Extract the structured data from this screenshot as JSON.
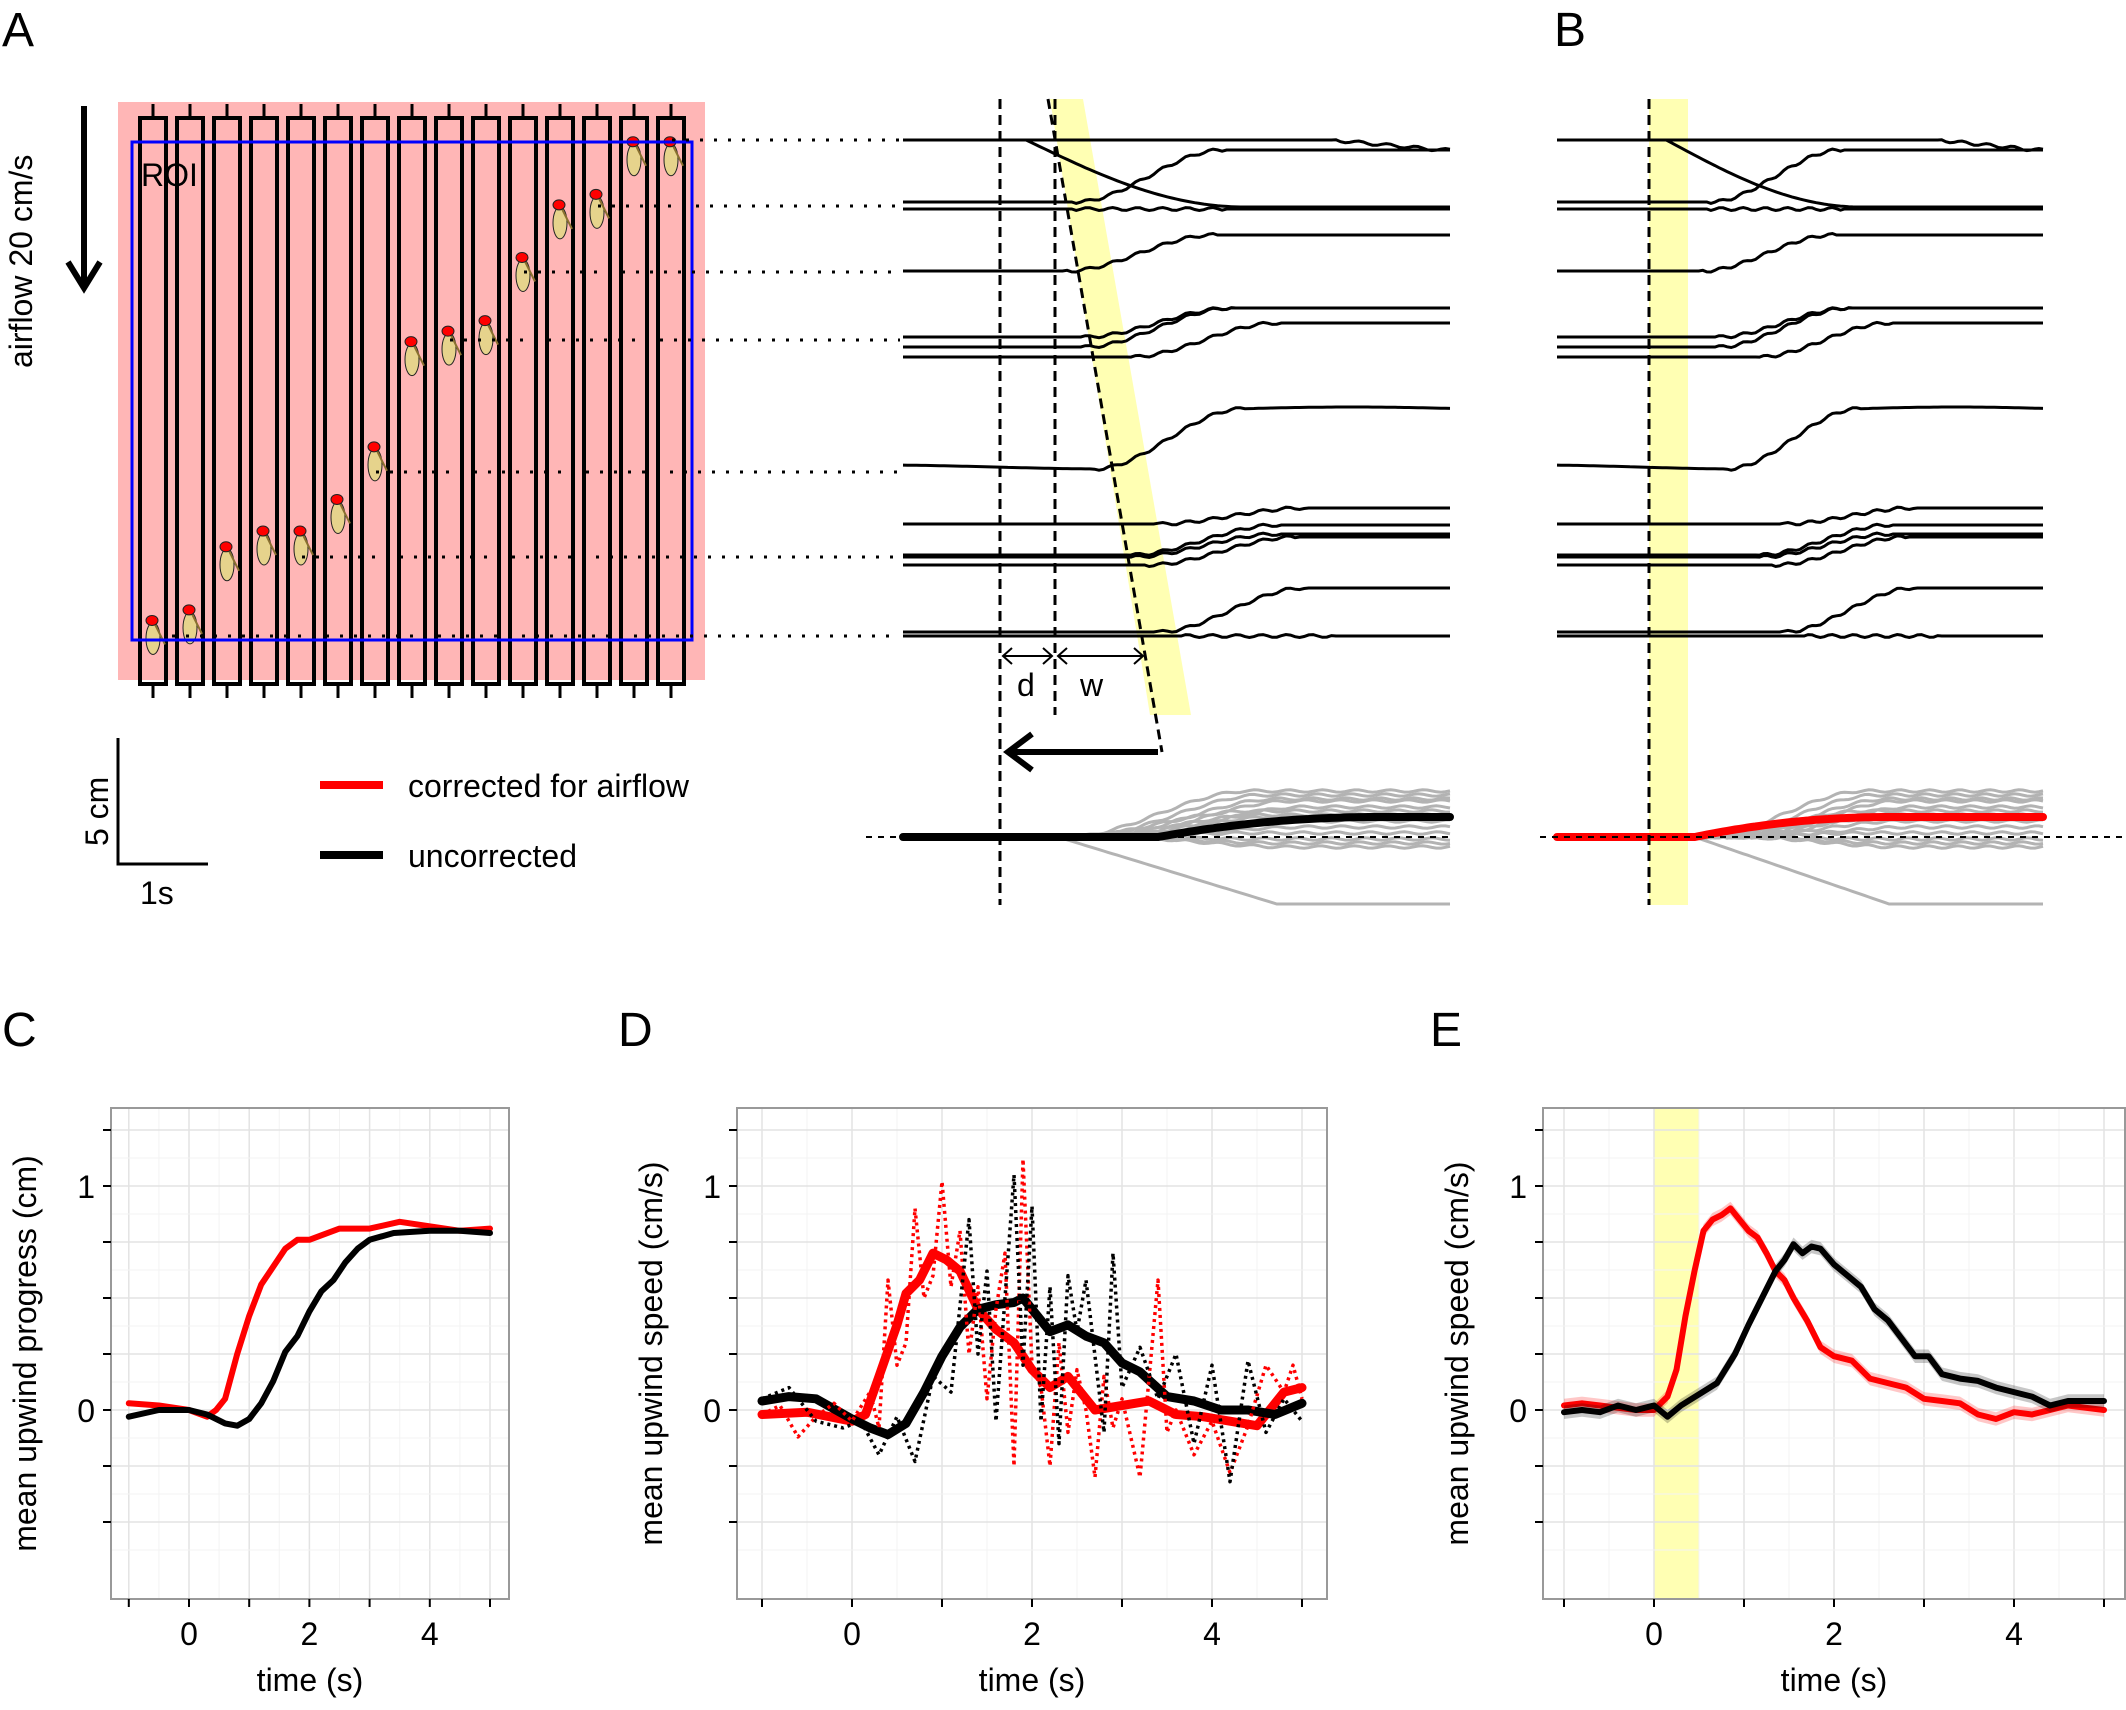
{
  "panel_labels": {
    "A": "A",
    "B": "B",
    "C": "C",
    "D": "D",
    "E": "E"
  },
  "colors": {
    "corrected": "#ff0000",
    "uncorrected": "#000000",
    "individual": "#b3b3b3",
    "highlight": "#ffffb3",
    "arena_bg": "#ffb6b6",
    "roi": "#0000ff",
    "grid": "#e5e5e5"
  },
  "panel_a": {
    "airflow_label": "airflow 20 cm/s",
    "roi_label": "ROI",
    "tube_count": 15,
    "fly_positions_fraction_from_top": [
      0.94,
      0.92,
      0.8,
      0.77,
      0.77,
      0.71,
      0.61,
      0.41,
      0.39,
      0.37,
      0.25,
      0.15,
      0.13,
      0.03,
      0.03
    ],
    "interval_labels": {
      "delay": "d",
      "width": "w"
    },
    "scalebar": {
      "vertical_label": "5 cm",
      "horizontal_label": "1s"
    }
  },
  "legend": {
    "items": [
      {
        "label": "corrected for airflow",
        "color": "#ff0000"
      },
      {
        "label": "uncorrected",
        "color": "#000000"
      }
    ]
  },
  "chart_data": [
    {
      "panel": "C",
      "type": "line",
      "title": "",
      "xlabel": "time (s)",
      "ylabel": "mean upwind progress (cm)",
      "xlim": [
        -1.2,
        5.3
      ],
      "ylim": [
        -0.5,
        1.3
      ],
      "xticks": [
        -1,
        0,
        1,
        2,
        3,
        4,
        5
      ],
      "xtick_labels": [
        "",
        "0",
        "",
        "2",
        "",
        "4",
        ""
      ],
      "yticks": [
        -0.5,
        -0.25,
        0,
        0.25,
        0.5,
        0.75,
        1,
        1.25
      ],
      "ytick_labels": [
        "",
        "",
        "0",
        "",
        "",
        "",
        "1",
        ""
      ],
      "grid": true,
      "series": [
        {
          "name": "corrected for airflow",
          "color": "#ff0000",
          "x": [
            -1,
            -0.5,
            0,
            0.3,
            0.45,
            0.6,
            0.8,
            1.0,
            1.2,
            1.4,
            1.6,
            1.8,
            2.0,
            2.2,
            2.5,
            3.0,
            3.5,
            4.0,
            4.5,
            5.0
          ],
          "y": [
            0.03,
            0.02,
            0.0,
            -0.03,
            0.0,
            0.05,
            0.25,
            0.42,
            0.56,
            0.64,
            0.72,
            0.76,
            0.76,
            0.78,
            0.81,
            0.81,
            0.84,
            0.82,
            0.8,
            0.81
          ]
        },
        {
          "name": "uncorrected",
          "color": "#000000",
          "x": [
            -1,
            -0.5,
            0,
            0.3,
            0.6,
            0.8,
            1.0,
            1.2,
            1.4,
            1.6,
            1.8,
            2.0,
            2.2,
            2.4,
            2.6,
            2.8,
            3.0,
            3.4,
            4.0,
            4.5,
            5.0
          ],
          "y": [
            -0.03,
            0.0,
            0.0,
            -0.02,
            -0.06,
            -0.07,
            -0.04,
            0.03,
            0.13,
            0.26,
            0.33,
            0.44,
            0.53,
            0.58,
            0.66,
            0.72,
            0.76,
            0.79,
            0.8,
            0.8,
            0.79
          ]
        }
      ]
    },
    {
      "panel": "D",
      "type": "line",
      "title": "",
      "xlabel": "time (s)",
      "ylabel": "mean upwind speed (cm/s)",
      "xlim": [
        -1.2,
        5.3
      ],
      "ylim": [
        -0.5,
        1.3
      ],
      "xticks": [
        -1,
        0,
        1,
        2,
        3,
        4,
        5
      ],
      "xtick_labels": [
        "",
        "0",
        "",
        "2",
        "",
        "4",
        ""
      ],
      "yticks": [
        -0.5,
        -0.25,
        0,
        0.25,
        0.5,
        0.75,
        1,
        1.25
      ],
      "ytick_labels": [
        "",
        "",
        "0",
        "",
        "",
        "",
        "1",
        ""
      ],
      "grid": true,
      "series": [
        {
          "name": "corrected for airflow (smoothed)",
          "color": "#ff0000",
          "style": "solid",
          "x": [
            -1,
            -0.5,
            0,
            0.15,
            0.3,
            0.5,
            0.6,
            0.75,
            0.9,
            1.05,
            1.2,
            1.4,
            1.6,
            1.8,
            2.0,
            2.2,
            2.4,
            2.7,
            3.0,
            3.3,
            3.6,
            3.9,
            4.2,
            4.5,
            4.8,
            5.0
          ],
          "y": [
            -0.02,
            -0.01,
            -0.05,
            -0.02,
            0.15,
            0.38,
            0.52,
            0.58,
            0.7,
            0.67,
            0.62,
            0.45,
            0.36,
            0.3,
            0.18,
            0.1,
            0.15,
            0.0,
            0.02,
            0.04,
            -0.02,
            -0.03,
            -0.05,
            -0.07,
            0.08,
            0.1
          ]
        },
        {
          "name": "uncorrected (smoothed)",
          "color": "#000000",
          "style": "solid",
          "x": [
            -1,
            -0.7,
            -0.4,
            0,
            0.2,
            0.4,
            0.6,
            0.8,
            1.0,
            1.2,
            1.4,
            1.6,
            1.8,
            1.9,
            2.0,
            2.2,
            2.4,
            2.6,
            2.8,
            3.0,
            3.2,
            3.5,
            3.8,
            4.1,
            4.4,
            4.7,
            5.0
          ],
          "y": [
            0.04,
            0.06,
            0.05,
            -0.04,
            -0.08,
            -0.11,
            -0.06,
            0.08,
            0.24,
            0.37,
            0.45,
            0.47,
            0.48,
            0.5,
            0.45,
            0.35,
            0.38,
            0.33,
            0.3,
            0.21,
            0.17,
            0.06,
            0.04,
            0.0,
            0.0,
            -0.02,
            0.03
          ]
        },
        {
          "name": "corrected for airflow (raw)",
          "color": "#ff0000",
          "style": "dotted",
          "x": [
            -1,
            -0.8,
            -0.6,
            -0.4,
            -0.2,
            0,
            0.2,
            0.3,
            0.4,
            0.5,
            0.6,
            0.7,
            0.8,
            0.9,
            1.0,
            1.1,
            1.2,
            1.3,
            1.4,
            1.5,
            1.6,
            1.7,
            1.8,
            1.9,
            2.0,
            2.1,
            2.2,
            2.3,
            2.4,
            2.5,
            2.6,
            2.7,
            2.8,
            2.9,
            3.0,
            3.2,
            3.4,
            3.5,
            3.6,
            3.8,
            4.0,
            4.2,
            4.4,
            4.6,
            4.8,
            4.9,
            5.0
          ],
          "y": [
            -0.02,
            0.02,
            -0.12,
            -0.03,
            0.03,
            -0.05,
            0.08,
            -0.08,
            0.58,
            0.2,
            0.3,
            0.9,
            0.5,
            0.6,
            1.02,
            0.55,
            0.8,
            0.25,
            0.55,
            0.05,
            0.45,
            0.7,
            -0.25,
            1.12,
            0.2,
            0.1,
            -0.25,
            0.3,
            -0.1,
            0.18,
            0.0,
            -0.3,
            0.15,
            -0.08,
            0.05,
            -0.3,
            0.58,
            -0.1,
            0.0,
            -0.2,
            -0.05,
            -0.28,
            -0.07,
            0.2,
            0.08,
            0.2,
            0.05
          ]
        },
        {
          "name": "uncorrected (raw)",
          "color": "#000000",
          "style": "dotted",
          "x": [
            -1,
            -0.7,
            -0.4,
            -0.1,
            0.1,
            0.3,
            0.5,
            0.7,
            0.9,
            1.1,
            1.3,
            1.4,
            1.5,
            1.6,
            1.8,
            1.9,
            2.0,
            2.1,
            2.2,
            2.3,
            2.4,
            2.5,
            2.6,
            2.8,
            2.9,
            3.0,
            3.2,
            3.4,
            3.6,
            3.8,
            4.0,
            4.2,
            4.4,
            4.6,
            4.8,
            5.0
          ],
          "y": [
            0.05,
            0.1,
            -0.05,
            -0.08,
            -0.05,
            -0.2,
            -0.03,
            -0.23,
            0.15,
            0.08,
            0.85,
            0.25,
            0.62,
            -0.05,
            1.05,
            0.2,
            0.91,
            -0.05,
            0.55,
            -0.15,
            0.6,
            0.35,
            0.58,
            -0.1,
            0.7,
            0.1,
            0.28,
            0.05,
            0.25,
            -0.15,
            0.2,
            -0.32,
            0.22,
            -0.1,
            0.05,
            -0.05
          ]
        }
      ]
    },
    {
      "panel": "E",
      "type": "line",
      "title": "",
      "xlabel": "time (s)",
      "ylabel": "mean upwind speed (cm/s)",
      "xlim": [
        -1.2,
        5.3
      ],
      "ylim": [
        -0.5,
        1.3
      ],
      "xticks": [
        -1,
        0,
        1,
        2,
        3,
        4,
        5
      ],
      "xtick_labels": [
        "",
        "0",
        "",
        "2",
        "",
        "4",
        ""
      ],
      "yticks": [
        -0.5,
        -0.25,
        0,
        0.25,
        0.5,
        0.75,
        1,
        1.25
      ],
      "ytick_labels": [
        "",
        "",
        "0",
        "",
        "",
        "",
        "1",
        ""
      ],
      "grid": true,
      "highlight_x_range": [
        0,
        0.5
      ],
      "series": [
        {
          "name": "corrected for airflow",
          "color": "#ff0000",
          "band": 0.03,
          "x": [
            -1,
            -0.8,
            -0.6,
            -0.4,
            -0.2,
            0,
            0.15,
            0.25,
            0.35,
            0.45,
            0.55,
            0.65,
            0.75,
            0.85,
            0.95,
            1.05,
            1.15,
            1.25,
            1.35,
            1.45,
            1.55,
            1.7,
            1.85,
            2.0,
            2.2,
            2.4,
            2.6,
            2.8,
            3.0,
            3.2,
            3.4,
            3.6,
            3.8,
            4.0,
            4.2,
            4.4,
            4.6,
            4.8,
            5.0
          ],
          "y": [
            0.02,
            0.03,
            0.02,
            0.01,
            0.0,
            0.0,
            0.06,
            0.18,
            0.42,
            0.62,
            0.8,
            0.85,
            0.87,
            0.9,
            0.85,
            0.8,
            0.77,
            0.7,
            0.62,
            0.58,
            0.5,
            0.4,
            0.28,
            0.24,
            0.22,
            0.14,
            0.12,
            0.1,
            0.05,
            0.04,
            0.03,
            -0.02,
            -0.04,
            -0.01,
            -0.02,
            0.0,
            0.02,
            0.01,
            0.0
          ]
        },
        {
          "name": "uncorrected",
          "color": "#000000",
          "band": 0.03,
          "x": [
            -1,
            -0.8,
            -0.6,
            -0.4,
            -0.2,
            0.0,
            0.15,
            0.3,
            0.5,
            0.7,
            0.9,
            1.05,
            1.2,
            1.35,
            1.45,
            1.55,
            1.65,
            1.75,
            1.85,
            2.0,
            2.15,
            2.3,
            2.45,
            2.6,
            2.75,
            2.9,
            3.05,
            3.2,
            3.4,
            3.6,
            3.8,
            4.0,
            4.2,
            4.4,
            4.6,
            4.8,
            5.0
          ],
          "y": [
            -0.01,
            0.0,
            -0.01,
            0.02,
            0.0,
            0.02,
            -0.03,
            0.02,
            0.07,
            0.12,
            0.25,
            0.38,
            0.5,
            0.62,
            0.67,
            0.74,
            0.7,
            0.73,
            0.72,
            0.65,
            0.6,
            0.55,
            0.45,
            0.4,
            0.32,
            0.24,
            0.24,
            0.16,
            0.14,
            0.13,
            0.1,
            0.08,
            0.06,
            0.02,
            0.04,
            0.04,
            0.04
          ]
        }
      ]
    }
  ]
}
